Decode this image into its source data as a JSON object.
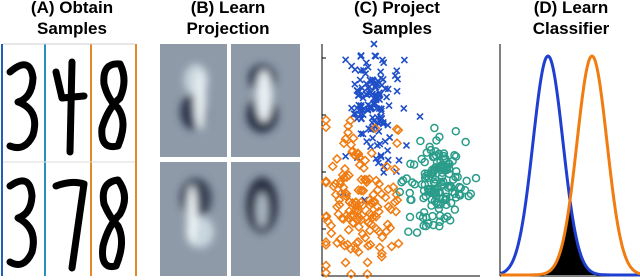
{
  "panels": [
    {
      "title": [
        "(A) Obtain",
        "Samples"
      ]
    },
    {
      "title": [
        "(B) Learn",
        "Projection"
      ]
    },
    {
      "title": [
        "(C) Project",
        "Samples"
      ]
    },
    {
      "title": [
        "(D) Learn",
        "Classifier"
      ]
    }
  ]
}
